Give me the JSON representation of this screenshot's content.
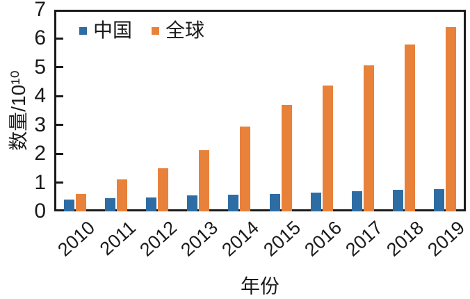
{
  "chart_data": {
    "type": "bar",
    "title": "",
    "categories": [
      "2010",
      "2011",
      "2012",
      "2013",
      "2014",
      "2015",
      "2016",
      "2017",
      "2018",
      "2019"
    ],
    "series": [
      {
        "name": "中国",
        "color": "#2e6da4",
        "values": [
          0.4,
          0.45,
          0.49,
          0.55,
          0.58,
          0.61,
          0.66,
          0.71,
          0.74,
          0.78
        ]
      },
      {
        "name": "全球",
        "color": "#e8813a",
        "values": [
          0.6,
          1.1,
          1.5,
          2.13,
          2.95,
          3.7,
          4.36,
          5.08,
          5.8,
          6.4
        ]
      }
    ],
    "xlabel": "年份",
    "ylabel": "数量/10¹⁰",
    "ylim": [
      0,
      7
    ],
    "yticks": [
      0,
      1,
      2,
      3,
      4,
      5,
      6,
      7
    ],
    "legend_position": "top-left-inside",
    "grid": false
  },
  "colors": {
    "axis": "#1a1a1a",
    "background": "#ffffff"
  }
}
